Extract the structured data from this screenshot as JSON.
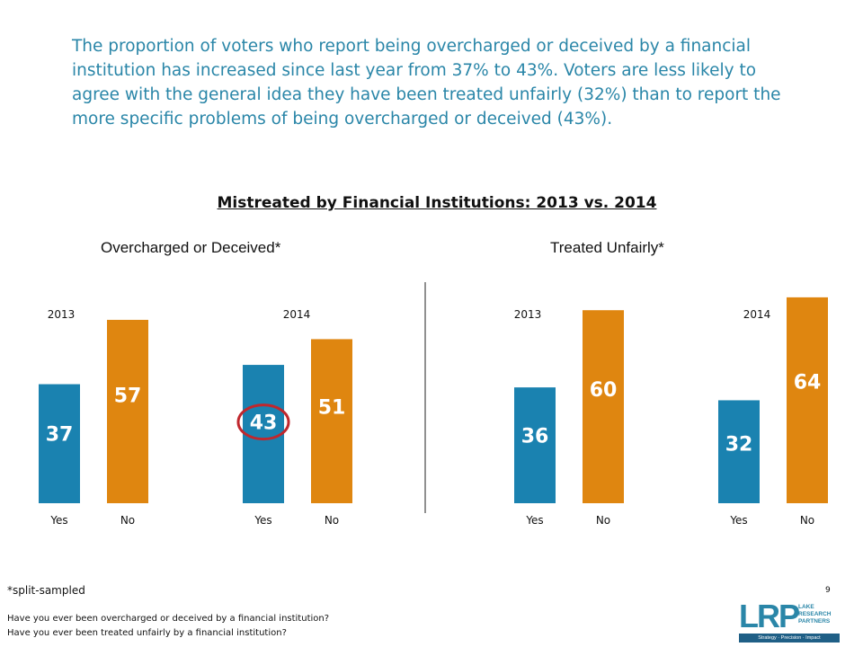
{
  "intro_text": "The proportion of voters who report being overcharged or deceived by a financial institution has increased since last year from 37% to 43%. Voters are less likely to agree with the general idea they have been treated unfairly (32%) than to report the more specific problems of being overcharged or deceived (43%).",
  "chart_data": {
    "type": "bar",
    "title": "Mistreated by Financial Institutions: 2013 vs. 2014",
    "ylim": [
      0,
      100
    ],
    "grid": false,
    "legend": "none",
    "colors": {
      "yes": "#1a82b0",
      "no": "#df8610",
      "highlight_circle": "#c0272d"
    },
    "panels": [
      {
        "title": "Overcharged or Deceived*",
        "groups": [
          {
            "year": "2013",
            "categories": [
              "Yes",
              "No"
            ],
            "values": [
              37,
              57
            ],
            "labels": [
              "37",
              "57"
            ]
          },
          {
            "year": "2014",
            "categories": [
              "Yes",
              "No"
            ],
            "values": [
              43,
              51
            ],
            "labels": [
              "43",
              "51"
            ],
            "highlight": "Yes"
          }
        ]
      },
      {
        "title": "Treated Unfairly*",
        "groups": [
          {
            "year": "2013",
            "categories": [
              "Yes",
              "No"
            ],
            "values": [
              36,
              60
            ],
            "labels": [
              "36",
              "60"
            ]
          },
          {
            "year": "2014",
            "categories": [
              "Yes",
              "No"
            ],
            "values": [
              32,
              64
            ],
            "labels": [
              "32",
              "64"
            ]
          }
        ]
      }
    ]
  },
  "footnote": "*split-sampled",
  "questions": [
    "Have you ever been overcharged or deceived by a financial institution?",
    "Have you ever been treated unfairly by a financial institution?"
  ],
  "page_number": "9",
  "logo": {
    "letters": "LRP",
    "name_lines": [
      "LAKE",
      "RESEARCH",
      "PARTNERS"
    ],
    "tagline": "Strategy · Precision · Impact"
  }
}
